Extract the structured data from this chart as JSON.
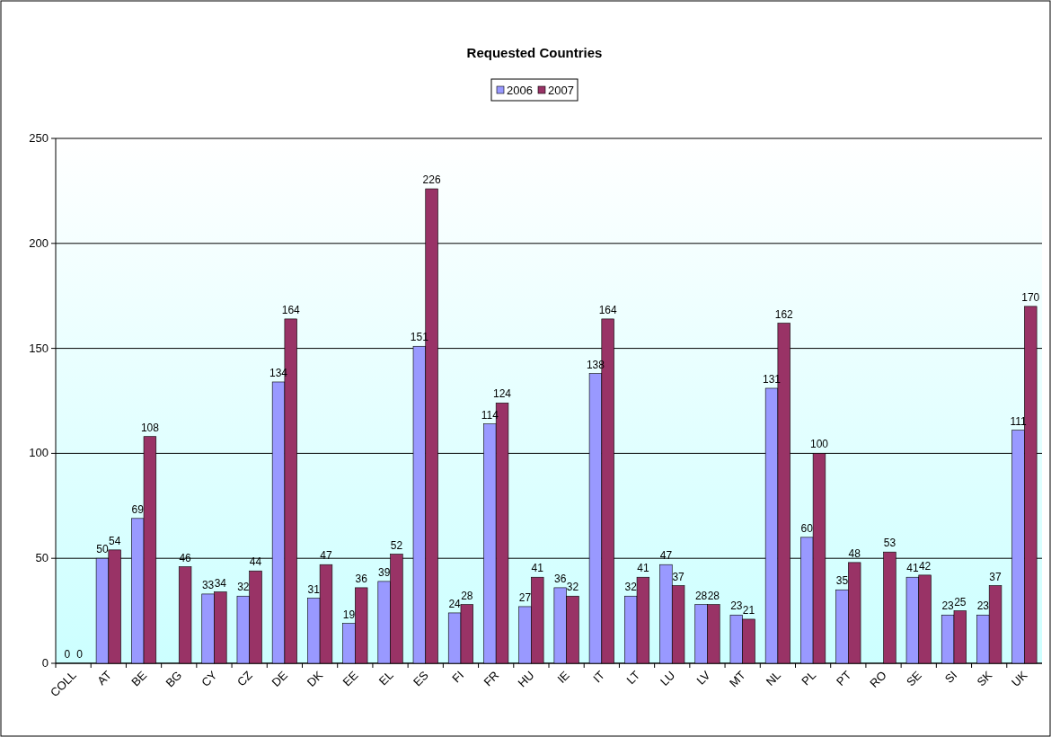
{
  "chart_data": {
    "type": "bar",
    "title": "Requested Countries",
    "categories": [
      "COLL",
      "AT",
      "BE",
      "BG",
      "CY",
      "CZ",
      "DE",
      "DK",
      "EE",
      "EL",
      "ES",
      "FI",
      "FR",
      "HU",
      "IE",
      "IT",
      "LT",
      "LU",
      "LV",
      "MT",
      "NL",
      "PL",
      "PT",
      "RO",
      "SE",
      "SI",
      "SK",
      "UK"
    ],
    "series": [
      {
        "name": "2006",
        "color": "#9999ff",
        "values": [
          0,
          50,
          69,
          null,
          33,
          32,
          134,
          31,
          19,
          39,
          151,
          24,
          114,
          27,
          36,
          138,
          32,
          47,
          28,
          23,
          131,
          60,
          35,
          null,
          41,
          23,
          23,
          111
        ]
      },
      {
        "name": "2007",
        "color": "#993366",
        "values": [
          0,
          54,
          108,
          46,
          34,
          44,
          164,
          47,
          36,
          52,
          226,
          28,
          124,
          41,
          32,
          164,
          41,
          37,
          28,
          21,
          162,
          100,
          48,
          53,
          42,
          25,
          37,
          170
        ]
      }
    ],
    "ylim": [
      0,
      250
    ],
    "yticks": [
      0,
      50,
      100,
      150,
      200,
      250
    ],
    "grid": "y",
    "legend": "top",
    "data_labels": true
  }
}
